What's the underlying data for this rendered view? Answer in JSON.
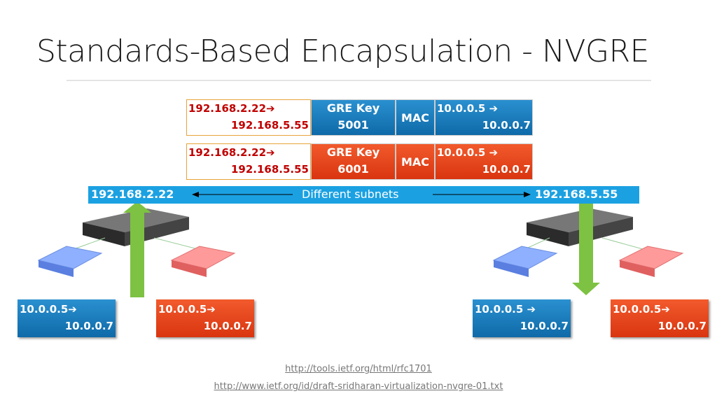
{
  "title": "Standards-Based Encapsulation - NVGRE",
  "packets": [
    {
      "outer": [
        "192.168.2.22➔",
        "192.168.5.55"
      ],
      "gre": [
        "GRE Key",
        "5001"
      ],
      "mac": "MAC",
      "inner": [
        "10.0.0.5 ➔",
        "10.0.0.7"
      ]
    },
    {
      "outer": [
        "192.168.2.22➔",
        "192.168.5.55"
      ],
      "gre": [
        "GRE Key",
        "6001"
      ],
      "mac": "MAC",
      "inner": [
        "10.0.0.5 ➔",
        "10.0.0.7"
      ]
    }
  ],
  "network": {
    "left": "192.168.2.22",
    "center": "Different subnets",
    "right": "192.168.5.55"
  },
  "vms": [
    [
      "10.0.0.5➔",
      "10.0.0.7"
    ],
    [
      "10.0.0.5➔",
      "10.0.0.7"
    ],
    [
      "10.0.0.5 ➔",
      "10.0.0.7"
    ],
    [
      "10.0.0.5➔",
      "10.0.0.7"
    ]
  ],
  "links": [
    "http://tools.ietf.org/html/rfc1701",
    "http://www.ietf.org/id/draft-sridharan-virtualization-nvgre-01.txt"
  ]
}
